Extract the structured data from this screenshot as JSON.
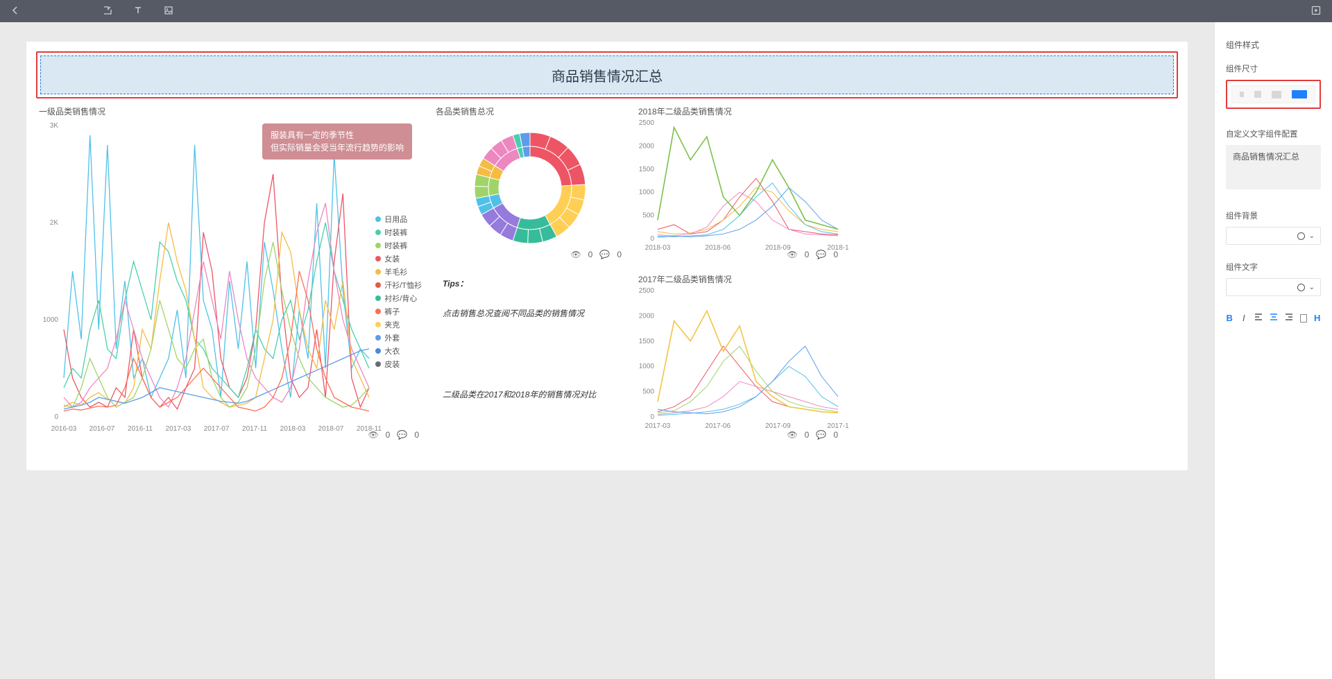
{
  "topbar": {
    "back_icon": "‹",
    "icons": [
      "import",
      "text",
      "image"
    ],
    "play_icon": "play"
  },
  "dashboard": {
    "title": "商品销售情况汇总",
    "title_bg": "#d9e8f2",
    "title_border": "#2e7bd6",
    "select_border": "#e23b3b"
  },
  "main_chart": {
    "title": "一级品类销售情况",
    "annot_line1": "服装具有一定的季节性",
    "annot_line2": "但实际销量会受当年流行趋势的影响",
    "annot_bg": "#cf8e94",
    "y_ticks": [
      0,
      1000,
      2000,
      3000
    ],
    "y_tick_labels": [
      "0",
      "1000",
      "2K",
      "3K"
    ],
    "x_labels": [
      "2016-03",
      "2016-07",
      "2016-11",
      "2017-03",
      "2017-07",
      "2017-11",
      "2018-03",
      "2018-07",
      "2018-11"
    ],
    "legend": [
      {
        "label": "日用品",
        "color": "#4fc1e9"
      },
      {
        "label": "时装裤",
        "color": "#48cfad"
      },
      {
        "label": "时装裤",
        "color": "#a0d468"
      },
      {
        "label": "女装",
        "color": "#ed5565"
      },
      {
        "label": "羊毛衫",
        "color": "#f6bb42"
      },
      {
        "label": "汗衫/T恤衫",
        "color": "#e9573f"
      },
      {
        "label": "衬衫/背心",
        "color": "#37bc9b"
      },
      {
        "label": "裤子",
        "color": "#fc6e51"
      },
      {
        "label": "夹克",
        "color": "#ffce54"
      },
      {
        "label": "外套",
        "color": "#5d9cec"
      },
      {
        "label": "大衣",
        "color": "#4a89dc"
      },
      {
        "label": "皮装",
        "color": "#656d78"
      }
    ],
    "series": [
      {
        "color": "#4fc1e9",
        "data": [
          400,
          1500,
          800,
          2900,
          900,
          2800,
          700,
          1400,
          400,
          600,
          200,
          400,
          600,
          1100,
          400,
          2800,
          1200,
          900,
          200,
          1400,
          700,
          1600,
          500,
          1800,
          1300,
          700,
          200,
          1100,
          600,
          2200,
          500,
          2700,
          1300,
          500,
          700,
          600
        ]
      },
      {
        "color": "#ed5565",
        "data": [
          900,
          400,
          200,
          100,
          150,
          100,
          300,
          200,
          900,
          400,
          200,
          100,
          200,
          80,
          300,
          500,
          1900,
          1500,
          600,
          300,
          200,
          400,
          900,
          2000,
          2500,
          1200,
          400,
          200,
          300,
          900,
          200,
          1600,
          2300,
          400,
          100,
          300
        ]
      },
      {
        "color": "#48cfad",
        "data": [
          300,
          500,
          400,
          900,
          1200,
          700,
          600,
          1200,
          1600,
          1300,
          1000,
          1800,
          1700,
          1400,
          1200,
          800,
          700,
          500,
          400,
          300,
          200,
          500,
          900,
          700,
          600,
          1000,
          1200,
          800,
          1100,
          1600,
          2000,
          1500,
          1200,
          900,
          700,
          500
        ]
      },
      {
        "color": "#f6bb42",
        "data": [
          100,
          150,
          120,
          200,
          250,
          180,
          160,
          140,
          300,
          900,
          700,
          1400,
          2000,
          1600,
          1300,
          800,
          300,
          200,
          150,
          100,
          120,
          140,
          200,
          600,
          1000,
          1900,
          1700,
          1100,
          700,
          500,
          1200,
          900,
          1400,
          600,
          400,
          200
        ]
      },
      {
        "color": "#ec87c0",
        "data": [
          200,
          100,
          150,
          300,
          400,
          500,
          800,
          1200,
          900,
          600,
          400,
          200,
          100,
          300,
          600,
          1100,
          1600,
          1200,
          800,
          1500,
          1000,
          600,
          400,
          300,
          200,
          150,
          300,
          700,
          1400,
          1900,
          2200,
          1500,
          1000,
          700,
          500,
          300
        ]
      },
      {
        "color": "#a0d468",
        "data": [
          120,
          100,
          300,
          600,
          400,
          200,
          100,
          150,
          200,
          400,
          700,
          1200,
          900,
          600,
          500,
          700,
          800,
          400,
          200,
          100,
          150,
          300,
          700,
          1400,
          1800,
          1300,
          900,
          600,
          400,
          300,
          200,
          150,
          100,
          120,
          200,
          300
        ]
      },
      {
        "color": "#5d9cec",
        "data": [
          80,
          100,
          120,
          150,
          200,
          180,
          160,
          140,
          170,
          200,
          250,
          300,
          280,
          260,
          240,
          220,
          200,
          180,
          160,
          150,
          140,
          160,
          200,
          240,
          280,
          320,
          360,
          400,
          440,
          480,
          520,
          560,
          600,
          640,
          680,
          700
        ]
      },
      {
        "color": "#fc6e51",
        "data": [
          60,
          80,
          70,
          90,
          110,
          100,
          120,
          300,
          600,
          400,
          200,
          100,
          150,
          200,
          300,
          400,
          500,
          400,
          300,
          200,
          100,
          80,
          60,
          100,
          200,
          400,
          800,
          1500,
          1200,
          700,
          400,
          200,
          150,
          100,
          80,
          60
        ]
      }
    ],
    "view_count": 0,
    "comment_count": 0
  },
  "donut_chart": {
    "title": "各品类销售总况",
    "view_count": 0,
    "comment_count": 0,
    "outer": [
      {
        "color": "#ed5565",
        "pct": 24,
        "segs": 4
      },
      {
        "color": "#ffce54",
        "pct": 18,
        "segs": 4
      },
      {
        "color": "#37bc9b",
        "pct": 13,
        "segs": 3
      },
      {
        "color": "#967adc",
        "pct": 12,
        "segs": 3
      },
      {
        "color": "#4fc1e9",
        "pct": 5,
        "segs": 2
      },
      {
        "color": "#a0d468",
        "pct": 7,
        "segs": 2
      },
      {
        "color": "#f6bb42",
        "pct": 5,
        "segs": 2
      },
      {
        "color": "#ec87c0",
        "pct": 11,
        "segs": 3
      },
      {
        "color": "#48cfad",
        "pct": 2,
        "segs": 1
      },
      {
        "color": "#5d9cec",
        "pct": 3,
        "segs": 1
      }
    ]
  },
  "tips": {
    "label": "Tips：",
    "text1": "点击销售总况查阅不同品类的销售情况",
    "text2": "二级品类在2017和2018年的销售情况对比"
  },
  "line2018": {
    "title": "2018年二级品类销售情况",
    "y_ticks": [
      0,
      500,
      1000,
      1500,
      2000,
      2500
    ],
    "x_labels": [
      "2018-03",
      "2018-06",
      "2018-09",
      "2018-1"
    ],
    "series_colors": [
      "#a0d468",
      "#ed5565",
      "#f6bb42",
      "#ec87c0",
      "#4fc1e9",
      "#5d9cec",
      "#967adc",
      "#fc6e51",
      "#48cfad",
      "#37bc9b"
    ],
    "main_green": [
      400,
      2400,
      1700,
      2200,
      900,
      500,
      1000,
      1700,
      1100,
      400,
      300,
      200
    ],
    "others": [
      [
        200,
        300,
        100,
        150,
        400,
        900,
        1300,
        800,
        200,
        150,
        100,
        80
      ],
      [
        150,
        100,
        120,
        200,
        400,
        700,
        1100,
        1000,
        600,
        300,
        200,
        150
      ],
      [
        80,
        60,
        100,
        250,
        700,
        1000,
        800,
        400,
        200,
        100,
        80,
        60
      ],
      [
        50,
        40,
        60,
        80,
        200,
        500,
        900,
        1200,
        700,
        300,
        150,
        100
      ],
      [
        30,
        50,
        40,
        60,
        100,
        200,
        400,
        700,
        1100,
        800,
        400,
        200
      ]
    ],
    "view_count": 0,
    "comment_count": 0
  },
  "line2017": {
    "title": "2017年二级品类销售情况",
    "y_ticks": [
      0,
      500,
      1000,
      1500,
      2000,
      2500
    ],
    "x_labels": [
      "2017-03",
      "2017-06",
      "2017-09",
      "2017-1"
    ],
    "main_yellow": [
      300,
      1900,
      1500,
      2100,
      1300,
      1800,
      700,
      400,
      200,
      150,
      100,
      80
    ],
    "others": [
      [
        100,
        200,
        400,
        900,
        1400,
        1000,
        600,
        300,
        200,
        150,
        100,
        80
      ],
      [
        80,
        120,
        300,
        600,
        1100,
        1400,
        900,
        500,
        300,
        200,
        150,
        100
      ],
      [
        50,
        80,
        120,
        200,
        400,
        700,
        600,
        500,
        400,
        300,
        200,
        150
      ],
      [
        30,
        50,
        70,
        100,
        150,
        250,
        400,
        700,
        1000,
        800,
        400,
        200
      ],
      [
        150,
        100,
        80,
        60,
        100,
        200,
        400,
        700,
        1100,
        1400,
        800,
        400
      ]
    ],
    "series_colors": [
      "#f6bb42",
      "#ed5565",
      "#a0d468",
      "#ec87c0",
      "#4fc1e9",
      "#5d9cec",
      "#967adc",
      "#fc6e51",
      "#48cfad",
      "#37bc9b"
    ],
    "view_count": 0,
    "comment_count": 0
  },
  "panel": {
    "section_title": "组件样式",
    "size_label": "组件尺寸",
    "custom_text_label": "自定义文字组件配置",
    "custom_text_value": "商品销售情况汇总",
    "bg_label": "组件背景",
    "text_label": "组件文字",
    "tool_bold": "B",
    "tool_italic": "I",
    "tool_h": "H"
  }
}
